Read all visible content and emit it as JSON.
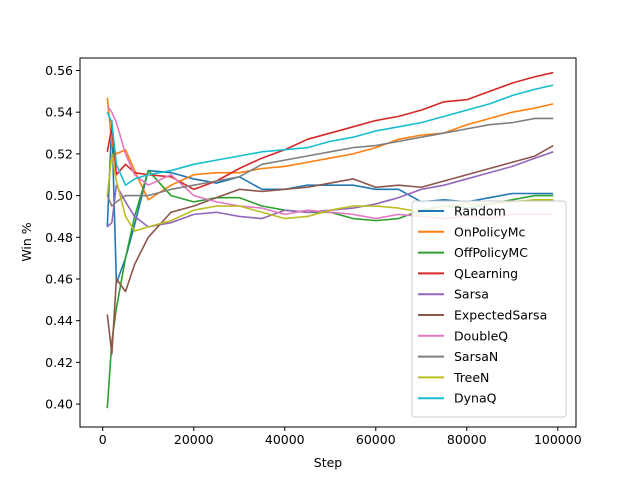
{
  "chart_data": {
    "type": "line",
    "xlabel": "Step",
    "ylabel": "Win %",
    "xlim": [
      -5000,
      104000
    ],
    "ylim": [
      0.389,
      0.566
    ],
    "xticks": [
      0,
      20000,
      40000,
      60000,
      80000,
      100000
    ],
    "xtick_labels": [
      "0",
      "20000",
      "40000",
      "60000",
      "80000",
      "100000"
    ],
    "yticks": [
      0.4,
      0.42,
      0.44,
      0.46,
      0.48,
      0.5,
      0.52,
      0.54,
      0.56
    ],
    "ytick_labels": [
      "0.40",
      "0.42",
      "0.44",
      "0.46",
      "0.48",
      "0.50",
      "0.52",
      "0.54",
      "0.56"
    ],
    "grid": false,
    "legend_position": "lower-right",
    "series": [
      {
        "name": "Random",
        "color": "#1f77b4",
        "points": [
          [
            1000,
            0.485
          ],
          [
            2000,
            0.536
          ],
          [
            3000,
            0.458
          ],
          [
            5000,
            0.47
          ],
          [
            7000,
            0.486
          ],
          [
            10000,
            0.512
          ],
          [
            15000,
            0.511
          ],
          [
            20000,
            0.508
          ],
          [
            25000,
            0.506
          ],
          [
            30000,
            0.509
          ],
          [
            35000,
            0.503
          ],
          [
            40000,
            0.503
          ],
          [
            45000,
            0.505
          ],
          [
            50000,
            0.505
          ],
          [
            55000,
            0.505
          ],
          [
            60000,
            0.503
          ],
          [
            65000,
            0.503
          ],
          [
            70000,
            0.497
          ],
          [
            75000,
            0.498
          ],
          [
            80000,
            0.497
          ],
          [
            85000,
            0.499
          ],
          [
            90000,
            0.501
          ],
          [
            95000,
            0.501
          ],
          [
            99000,
            0.501
          ]
        ]
      },
      {
        "name": "OnPolicyMc",
        "color": "#ff7f0e",
        "points": [
          [
            1000,
            0.547
          ],
          [
            2000,
            0.525
          ],
          [
            3000,
            0.52
          ],
          [
            5000,
            0.522
          ],
          [
            7000,
            0.512
          ],
          [
            10000,
            0.498
          ],
          [
            15000,
            0.505
          ],
          [
            20000,
            0.51
          ],
          [
            25000,
            0.511
          ],
          [
            30000,
            0.511
          ],
          [
            35000,
            0.513
          ],
          [
            40000,
            0.514
          ],
          [
            45000,
            0.516
          ],
          [
            50000,
            0.518
          ],
          [
            55000,
            0.52
          ],
          [
            60000,
            0.523
          ],
          [
            65000,
            0.527
          ],
          [
            70000,
            0.529
          ],
          [
            75000,
            0.53
          ],
          [
            80000,
            0.534
          ],
          [
            85000,
            0.537
          ],
          [
            90000,
            0.54
          ],
          [
            95000,
            0.542
          ],
          [
            99000,
            0.544
          ]
        ]
      },
      {
        "name": "OffPolicyMC",
        "color": "#2ca02c",
        "points": [
          [
            1000,
            0.398
          ],
          [
            2000,
            0.43
          ],
          [
            3000,
            0.446
          ],
          [
            5000,
            0.47
          ],
          [
            7000,
            0.49
          ],
          [
            10000,
            0.512
          ],
          [
            15000,
            0.5
          ],
          [
            20000,
            0.497
          ],
          [
            25000,
            0.499
          ],
          [
            30000,
            0.499
          ],
          [
            35000,
            0.495
          ],
          [
            40000,
            0.493
          ],
          [
            45000,
            0.492
          ],
          [
            50000,
            0.492
          ],
          [
            55000,
            0.489
          ],
          [
            60000,
            0.488
          ],
          [
            65000,
            0.489
          ],
          [
            70000,
            0.493
          ],
          [
            75000,
            0.495
          ],
          [
            80000,
            0.494
          ],
          [
            85000,
            0.496
          ],
          [
            90000,
            0.498
          ],
          [
            95000,
            0.5
          ],
          [
            99000,
            0.5
          ]
        ]
      },
      {
        "name": "QLearning",
        "color": "#d62728",
        "points": [
          [
            1000,
            0.521
          ],
          [
            2000,
            0.533
          ],
          [
            3000,
            0.51
          ],
          [
            5000,
            0.515
          ],
          [
            7000,
            0.511
          ],
          [
            10000,
            0.51
          ],
          [
            15000,
            0.509
          ],
          [
            20000,
            0.503
          ],
          [
            25000,
            0.507
          ],
          [
            30000,
            0.513
          ],
          [
            35000,
            0.518
          ],
          [
            40000,
            0.522
          ],
          [
            45000,
            0.527
          ],
          [
            50000,
            0.53
          ],
          [
            55000,
            0.533
          ],
          [
            60000,
            0.536
          ],
          [
            65000,
            0.538
          ],
          [
            70000,
            0.541
          ],
          [
            75000,
            0.545
          ],
          [
            80000,
            0.546
          ],
          [
            85000,
            0.55
          ],
          [
            90000,
            0.554
          ],
          [
            95000,
            0.557
          ],
          [
            99000,
            0.559
          ]
        ]
      },
      {
        "name": "Sarsa",
        "color": "#9467bd",
        "points": [
          [
            1000,
            0.485
          ],
          [
            2000,
            0.487
          ],
          [
            3000,
            0.505
          ],
          [
            5000,
            0.497
          ],
          [
            7000,
            0.49
          ],
          [
            10000,
            0.485
          ],
          [
            15000,
            0.487
          ],
          [
            20000,
            0.491
          ],
          [
            25000,
            0.492
          ],
          [
            30000,
            0.49
          ],
          [
            35000,
            0.489
          ],
          [
            40000,
            0.493
          ],
          [
            45000,
            0.492
          ],
          [
            50000,
            0.493
          ],
          [
            55000,
            0.494
          ],
          [
            60000,
            0.496
          ],
          [
            65000,
            0.499
          ],
          [
            70000,
            0.503
          ],
          [
            75000,
            0.505
          ],
          [
            80000,
            0.508
          ],
          [
            85000,
            0.511
          ],
          [
            90000,
            0.514
          ],
          [
            95000,
            0.518
          ],
          [
            99000,
            0.521
          ]
        ]
      },
      {
        "name": "ExpectedSarsa",
        "color": "#8c564b",
        "points": [
          [
            1000,
            0.443
          ],
          [
            2000,
            0.424
          ],
          [
            3000,
            0.46
          ],
          [
            5000,
            0.454
          ],
          [
            7000,
            0.467
          ],
          [
            10000,
            0.48
          ],
          [
            15000,
            0.492
          ],
          [
            20000,
            0.495
          ],
          [
            25000,
            0.499
          ],
          [
            30000,
            0.503
          ],
          [
            35000,
            0.502
          ],
          [
            40000,
            0.503
          ],
          [
            45000,
            0.504
          ],
          [
            50000,
            0.506
          ],
          [
            55000,
            0.508
          ],
          [
            60000,
            0.504
          ],
          [
            65000,
            0.505
          ],
          [
            70000,
            0.504
          ],
          [
            75000,
            0.507
          ],
          [
            80000,
            0.51
          ],
          [
            85000,
            0.513
          ],
          [
            90000,
            0.516
          ],
          [
            95000,
            0.519
          ],
          [
            99000,
            0.524
          ]
        ]
      },
      {
        "name": "DoubleQ",
        "color": "#e377c2",
        "points": [
          [
            1000,
            0.543
          ],
          [
            2000,
            0.54
          ],
          [
            3000,
            0.535
          ],
          [
            5000,
            0.52
          ],
          [
            7000,
            0.51
          ],
          [
            10000,
            0.505
          ],
          [
            15000,
            0.51
          ],
          [
            20000,
            0.5
          ],
          [
            25000,
            0.497
          ],
          [
            30000,
            0.495
          ],
          [
            35000,
            0.494
          ],
          [
            40000,
            0.491
          ],
          [
            45000,
            0.493
          ],
          [
            50000,
            0.492
          ],
          [
            55000,
            0.491
          ],
          [
            60000,
            0.489
          ],
          [
            65000,
            0.491
          ],
          [
            70000,
            0.49
          ],
          [
            75000,
            0.489
          ],
          [
            80000,
            0.49
          ],
          [
            85000,
            0.489
          ],
          [
            90000,
            0.491
          ],
          [
            95000,
            0.491
          ],
          [
            99000,
            0.491
          ]
        ]
      },
      {
        "name": "SarsaN",
        "color": "#7f7f7f",
        "points": [
          [
            1000,
            0.5
          ],
          [
            2000,
            0.495
          ],
          [
            3000,
            0.497
          ],
          [
            5000,
            0.5
          ],
          [
            7000,
            0.5
          ],
          [
            10000,
            0.5
          ],
          [
            15000,
            0.503
          ],
          [
            20000,
            0.505
          ],
          [
            25000,
            0.507
          ],
          [
            30000,
            0.509
          ],
          [
            35000,
            0.515
          ],
          [
            40000,
            0.517
          ],
          [
            45000,
            0.519
          ],
          [
            50000,
            0.521
          ],
          [
            55000,
            0.523
          ],
          [
            60000,
            0.524
          ],
          [
            65000,
            0.526
          ],
          [
            70000,
            0.528
          ],
          [
            75000,
            0.53
          ],
          [
            80000,
            0.532
          ],
          [
            85000,
            0.534
          ],
          [
            90000,
            0.535
          ],
          [
            95000,
            0.537
          ],
          [
            99000,
            0.537
          ]
        ]
      },
      {
        "name": "TreeN",
        "color": "#bcbd22",
        "points": [
          [
            1000,
            0.5
          ],
          [
            2000,
            0.52
          ],
          [
            3000,
            0.507
          ],
          [
            5000,
            0.49
          ],
          [
            7000,
            0.483
          ],
          [
            10000,
            0.485
          ],
          [
            15000,
            0.488
          ],
          [
            20000,
            0.493
          ],
          [
            25000,
            0.495
          ],
          [
            30000,
            0.495
          ],
          [
            35000,
            0.492
          ],
          [
            40000,
            0.489
          ],
          [
            45000,
            0.49
          ],
          [
            50000,
            0.493
          ],
          [
            55000,
            0.495
          ],
          [
            60000,
            0.495
          ],
          [
            65000,
            0.494
          ],
          [
            70000,
            0.492
          ],
          [
            75000,
            0.495
          ],
          [
            80000,
            0.496
          ],
          [
            85000,
            0.496
          ],
          [
            90000,
            0.497
          ],
          [
            95000,
            0.498
          ],
          [
            99000,
            0.498
          ]
        ]
      },
      {
        "name": "DynaQ",
        "color": "#17becf",
        "points": [
          [
            1000,
            0.54
          ],
          [
            2000,
            0.535
          ],
          [
            3000,
            0.515
          ],
          [
            5000,
            0.505
          ],
          [
            7000,
            0.508
          ],
          [
            10000,
            0.51
          ],
          [
            15000,
            0.512
          ],
          [
            20000,
            0.515
          ],
          [
            25000,
            0.517
          ],
          [
            30000,
            0.519
          ],
          [
            35000,
            0.521
          ],
          [
            40000,
            0.522
          ],
          [
            45000,
            0.523
          ],
          [
            50000,
            0.526
          ],
          [
            55000,
            0.528
          ],
          [
            60000,
            0.531
          ],
          [
            65000,
            0.533
          ],
          [
            70000,
            0.535
          ],
          [
            75000,
            0.538
          ],
          [
            80000,
            0.541
          ],
          [
            85000,
            0.544
          ],
          [
            90000,
            0.548
          ],
          [
            95000,
            0.551
          ],
          [
            99000,
            0.553
          ]
        ]
      }
    ]
  }
}
